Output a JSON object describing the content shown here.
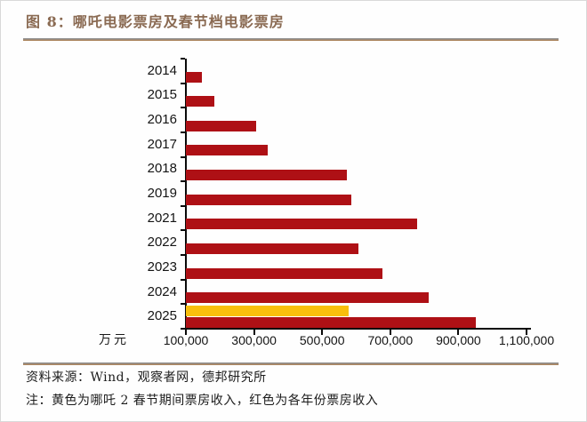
{
  "title": "图 8：哪吒电影票房及春节档电影票房",
  "chart_data": {
    "type": "bar",
    "orientation": "horizontal",
    "title": "哪吒电影票房及春节档电影票房",
    "unit_label": "万元",
    "categories": [
      "2014",
      "2015",
      "2016",
      "2017",
      "2018",
      "2019",
      "2021",
      "2022",
      "2023",
      "2024",
      "2025"
    ],
    "series": [
      {
        "name": "各年份票房收入",
        "color": "#ae1015",
        "values": [
          147000,
          183000,
          306000,
          340000,
          572000,
          586000,
          779000,
          606000,
          677000,
          814000,
          951000
        ]
      },
      {
        "name": "哪吒2春节期间票房收入",
        "color": "#f9bf0d",
        "values": [
          null,
          null,
          null,
          null,
          null,
          null,
          null,
          null,
          null,
          null,
          579000
        ]
      }
    ],
    "xlim": [
      100000,
      1100000
    ],
    "x_tick_values": [
      100000,
      300000,
      500000,
      700000,
      900000,
      1100000
    ],
    "x_tick_labels": [
      "100,000",
      "300,000",
      "500,000",
      "700,000",
      "900,000",
      "1,100,000"
    ],
    "grid": "off",
    "legend": "none"
  },
  "footer": {
    "source": "资料来源：Wind，观察者网，德邦研究所",
    "note": "注：黄色为哪吒 2 春节期间票房收入，红色为各年份票房收入"
  }
}
